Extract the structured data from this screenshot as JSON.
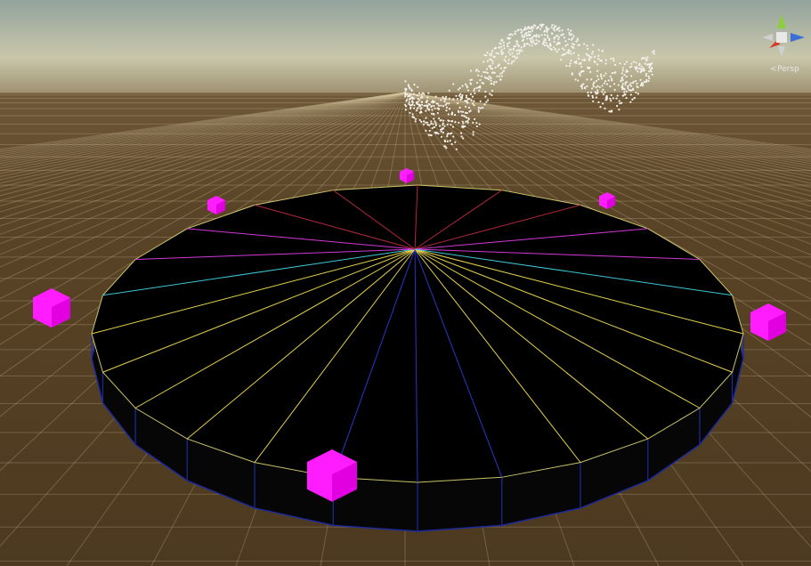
{
  "scene_view": {
    "projection_label": "Persp"
  }
}
